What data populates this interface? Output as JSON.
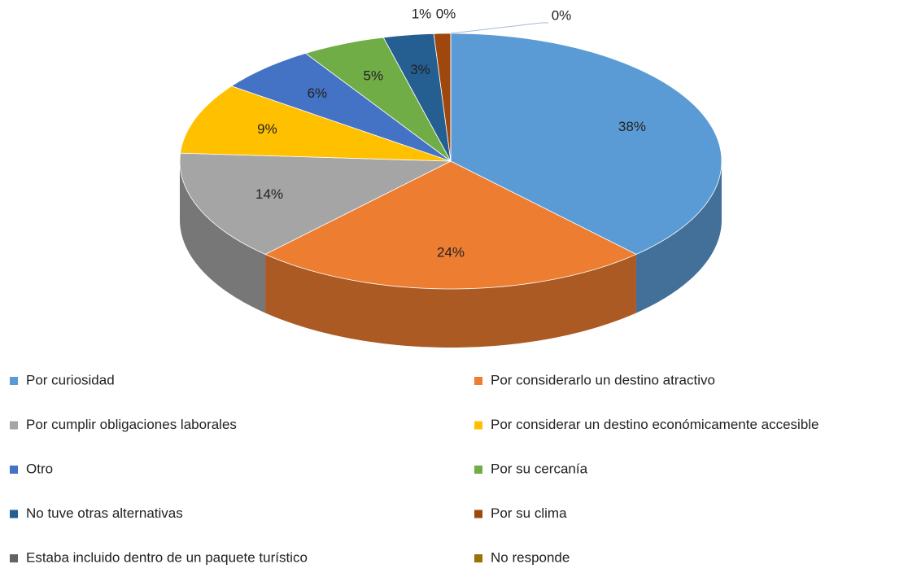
{
  "chart_data": {
    "type": "pie",
    "categories": [
      "Por curiosidad",
      "Por considerarlo un destino atractivo",
      "Por cumplir obligaciones laborales",
      "Por considerar un destino económicamente accesible",
      "Otro",
      "Por su cercanía",
      "No tuve otras alternativas",
      "Por su clima",
      "Estaba incluido dentro de un paquete turístico",
      "No responde"
    ],
    "values": [
      38,
      24,
      14,
      9,
      6,
      5,
      3,
      1,
      0,
      0
    ],
    "value_labels": [
      "38%",
      "24%",
      "14%",
      "9%",
      "6%",
      "5%",
      "3%",
      "1%",
      "0%",
      "0%"
    ],
    "colors": [
      "#5b9bd5",
      "#ed7d31",
      "#a5a5a5",
      "#ffc000",
      "#4472c4",
      "#70ad47",
      "#255e91",
      "#9e480e",
      "#636363",
      "#997300"
    ],
    "legend": "bottom"
  }
}
